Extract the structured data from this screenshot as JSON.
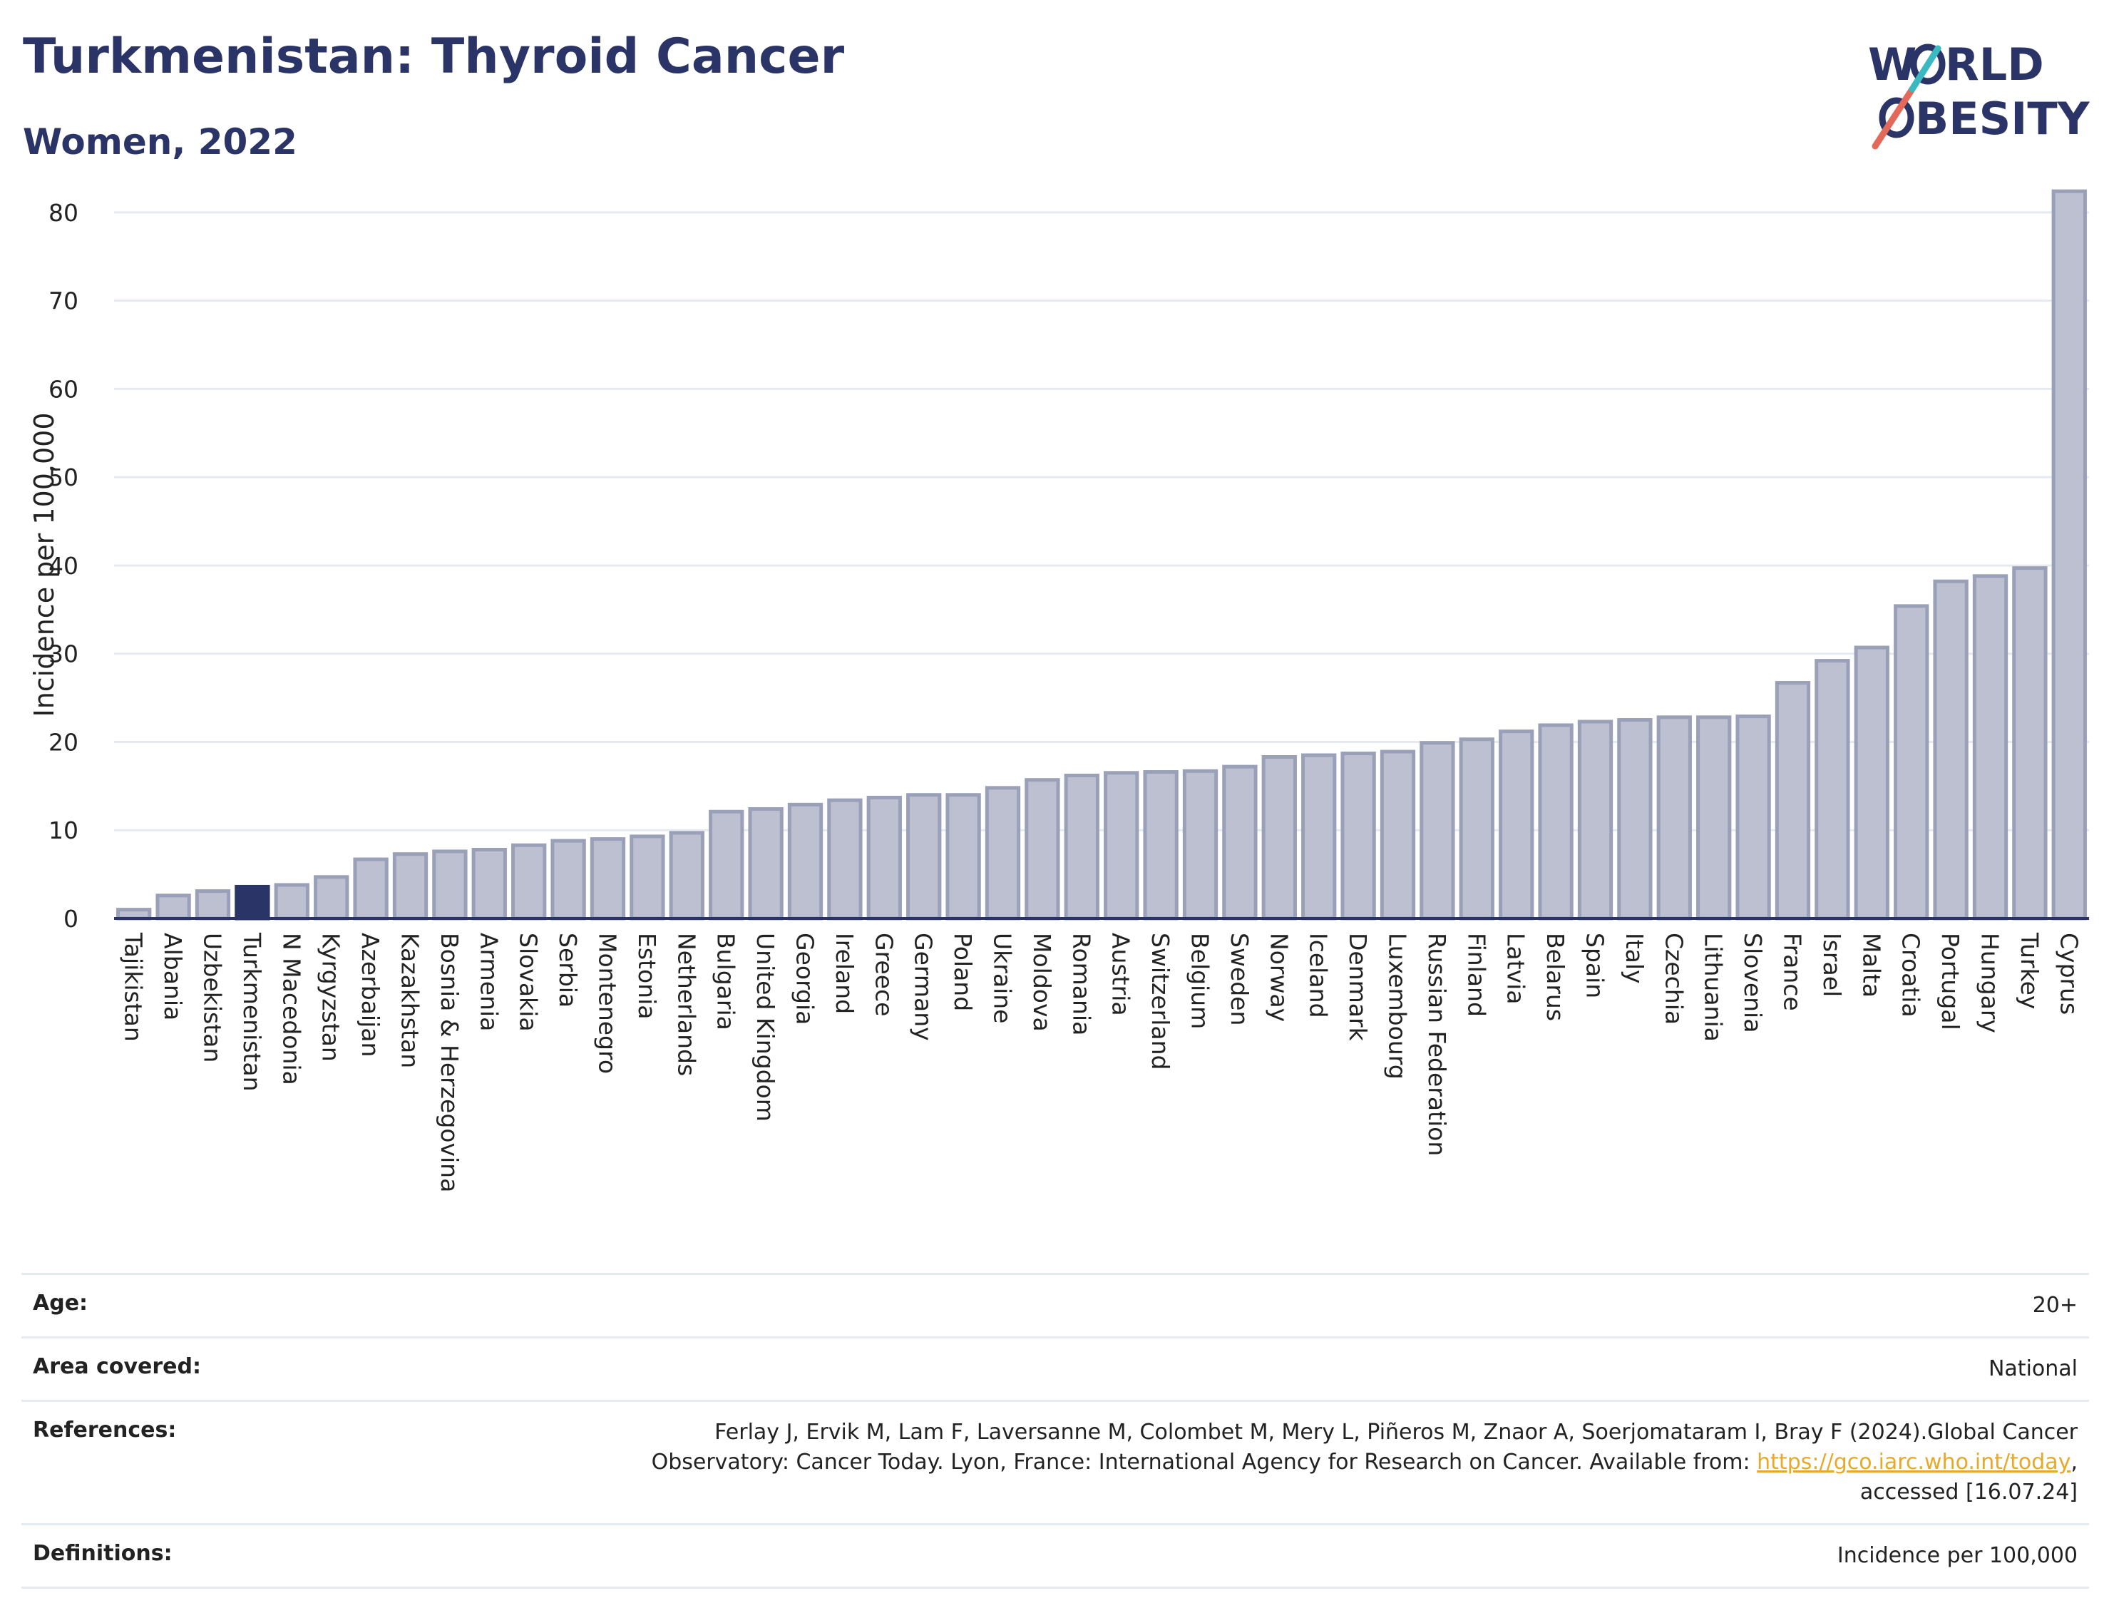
{
  "header": {
    "title": "Turkmenistan: Thyroid Cancer",
    "subtitle": "Women, 2022"
  },
  "logo": {
    "line1": "W",
    "line1b": "RLD",
    "line2b": "BESITY",
    "colors": {
      "text": "#2b3467",
      "slash1": "#e36a5a",
      "slash2": "#3bb9c0"
    }
  },
  "chart_data": {
    "type": "bar",
    "title": "",
    "xlabel": "",
    "ylabel": "Incidence per 100,000",
    "ylim": [
      0,
      85
    ],
    "yticks": [
      0,
      10,
      20,
      30,
      40,
      50,
      60,
      70,
      80
    ],
    "grid": true,
    "highlight": "Turkmenistan",
    "colors": {
      "bar": "#bcc0d0",
      "bar_edge": "#9aa0b8",
      "highlight": "#2b3467",
      "grid": "#e6eaf0",
      "axis": "#2b3467"
    },
    "categories": [
      "Tajikistan",
      "Albania",
      "Uzbekistan",
      "Turkmenistan",
      "N Macedonia",
      "Kyrgyzstan",
      "Azerbaijan",
      "Kazakhstan",
      "Bosnia & Herzegovina",
      "Armenia",
      "Slovakia",
      "Serbia",
      "Montenegro",
      "Estonia",
      "Netherlands",
      "Bulgaria",
      "United Kingdom",
      "Georgia",
      "Ireland",
      "Greece",
      "Germany",
      "Poland",
      "Ukraine",
      "Moldova",
      "Romania",
      "Austria",
      "Switzerland",
      "Belgium",
      "Sweden",
      "Norway",
      "Iceland",
      "Denmark",
      "Luxembourg",
      "Russian Federation",
      "Finland",
      "Latvia",
      "Belarus",
      "Spain",
      "Italy",
      "Czechia",
      "Lithuania",
      "Slovenia",
      "France",
      "Israel",
      "Malta",
      "Croatia",
      "Portugal",
      "Hungary",
      "Turkey",
      "Cyprus"
    ],
    "values": [
      1.0,
      2.6,
      3.1,
      3.6,
      3.8,
      4.7,
      6.7,
      7.3,
      7.6,
      7.8,
      8.3,
      8.8,
      9.0,
      9.3,
      9.7,
      12.1,
      12.4,
      12.9,
      13.4,
      13.7,
      14.0,
      14.0,
      14.8,
      15.7,
      16.2,
      16.5,
      16.6,
      16.7,
      17.2,
      18.3,
      18.5,
      18.7,
      18.9,
      19.9,
      20.3,
      21.2,
      21.9,
      22.3,
      22.5,
      22.8,
      22.8,
      22.9,
      26.7,
      29.2,
      30.7,
      35.4,
      38.2,
      38.8,
      39.7,
      82.4
    ]
  },
  "meta": {
    "age_label": "Age:",
    "age_value": "20+",
    "area_label": "Area covered:",
    "area_value": "National",
    "ref_label": "References:",
    "ref_text_1": "Ferlay J, Ervik M, Lam F, Laversanne M, Colombet M, Mery L, Piñeros M, Znaor A, Soerjomataram I, Bray F (2024).Global Cancer",
    "ref_text_2": "Observatory: Cancer Today. Lyon, France: International Agency for Research on Cancer. Available from: ",
    "ref_link": "https://gco.iarc.who.int/today",
    "ref_text_3": ",",
    "ref_text_4": "accessed [16.07.24]",
    "def_label": "Definitions:",
    "def_value": "Incidence per 100,000"
  }
}
